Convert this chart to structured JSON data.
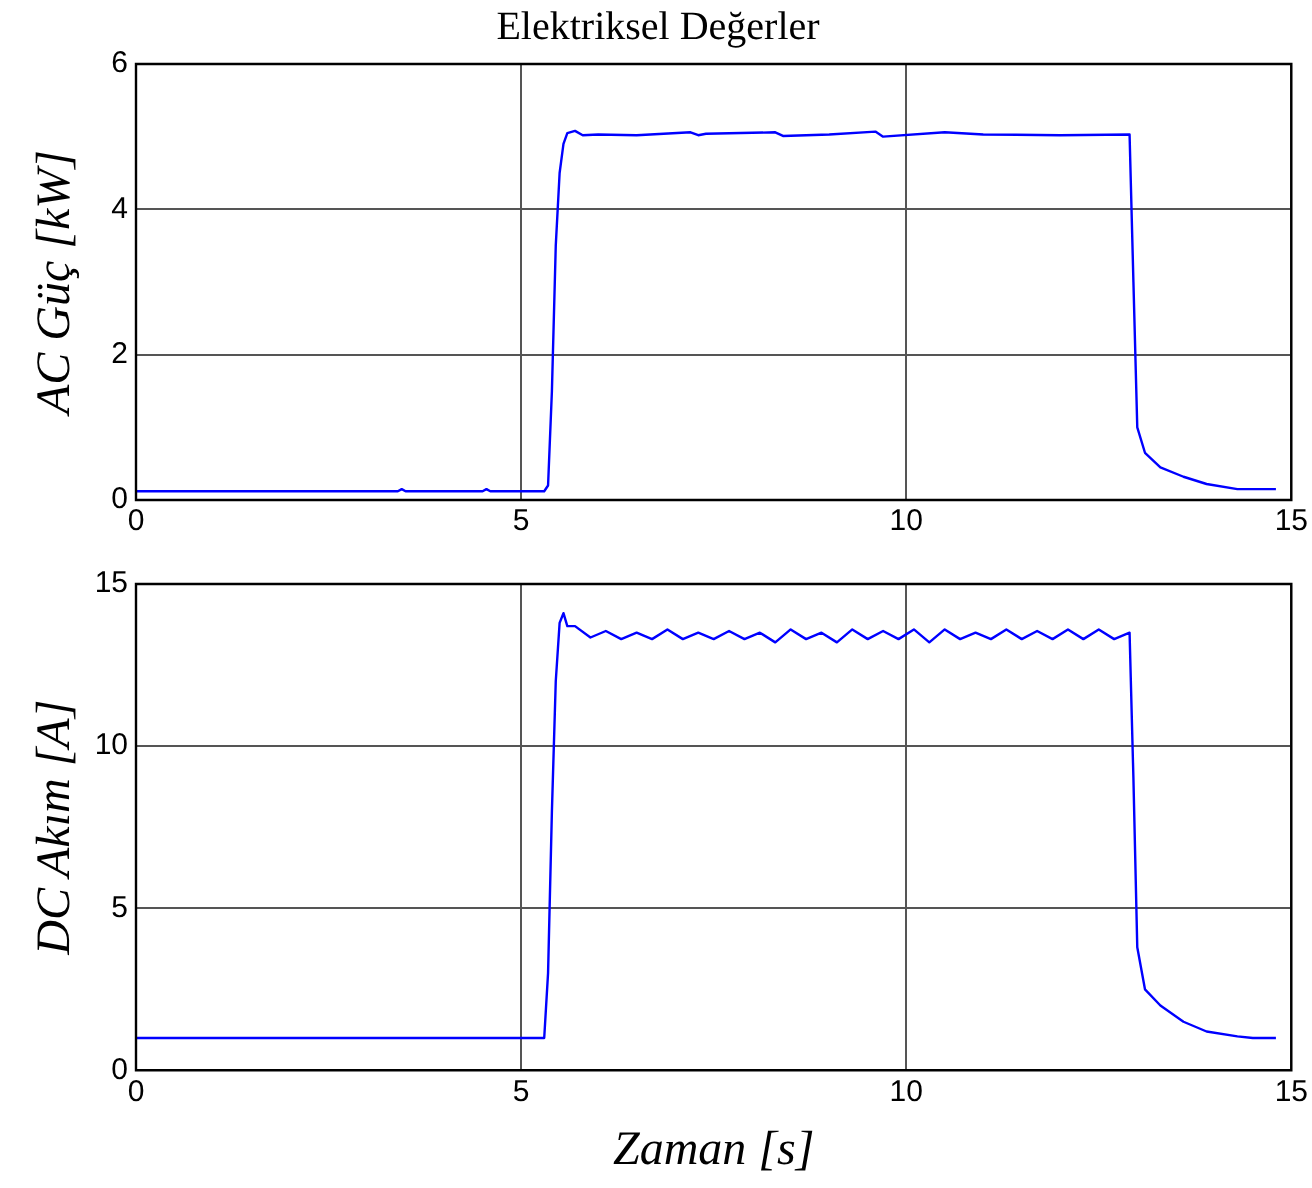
{
  "chart_data": [
    {
      "type": "line",
      "title": "Elektriksel Değerler",
      "ylabel": "AC Güç [kW]",
      "xlim": [
        0,
        15
      ],
      "xticks": [
        0,
        5,
        10,
        15
      ],
      "ylim": [
        0,
        6
      ],
      "yticks": [
        0,
        2,
        4,
        6
      ],
      "grid": true,
      "legend": false,
      "marker": "none",
      "line_style": "solid",
      "series": [
        {
          "color": "#0000ff",
          "x": [
            0,
            3.4,
            3.45,
            3.5,
            4.5,
            4.55,
            4.6,
            5.3,
            5.35,
            5.4,
            5.45,
            5.5,
            5.55,
            5.6,
            5.7,
            5.8,
            6.0,
            6.5,
            7.2,
            7.3,
            7.4,
            8.3,
            8.4,
            9.0,
            9.6,
            9.7,
            10.5,
            11.0,
            12.0,
            12.9,
            12.95,
            13.0,
            13.1,
            13.3,
            13.6,
            13.9,
            14.3,
            14.8
          ],
          "values": [
            0.12,
            0.12,
            0.15,
            0.12,
            0.12,
            0.15,
            0.12,
            0.12,
            0.2,
            1.5,
            3.5,
            4.5,
            4.9,
            5.05,
            5.08,
            5.02,
            5.03,
            5.02,
            5.06,
            5.02,
            5.04,
            5.06,
            5.01,
            5.03,
            5.07,
            5.0,
            5.06,
            5.03,
            5.02,
            5.03,
            3.0,
            1.0,
            0.65,
            0.45,
            0.32,
            0.22,
            0.15,
            0.15
          ]
        }
      ]
    },
    {
      "type": "line",
      "ylabel": "DC Akım [A]",
      "xlabel": "Zaman [s]",
      "xlim": [
        0,
        15
      ],
      "xticks": [
        0,
        5,
        10,
        15
      ],
      "ylim": [
        0,
        15
      ],
      "yticks": [
        0,
        5,
        10,
        15
      ],
      "grid": true,
      "legend": false,
      "marker": "none",
      "line_style": "solid",
      "series": [
        {
          "color": "#0000ff",
          "x": [
            0,
            5.3,
            5.35,
            5.4,
            5.45,
            5.5,
            5.55,
            5.6,
            5.7,
            5.9,
            6.1,
            6.3,
            6.5,
            6.7,
            6.9,
            7.1,
            7.3,
            7.5,
            7.7,
            7.9,
            8.1,
            8.3,
            8.5,
            8.7,
            8.9,
            9.1,
            9.3,
            9.5,
            9.7,
            9.9,
            10.1,
            10.3,
            10.5,
            10.7,
            10.9,
            11.1,
            11.3,
            11.5,
            11.7,
            11.9,
            12.1,
            12.3,
            12.5,
            12.7,
            12.9,
            12.95,
            13.0,
            13.1,
            13.3,
            13.6,
            13.9,
            14.3,
            14.5,
            14.8
          ],
          "values": [
            1.0,
            1.0,
            3.0,
            8.0,
            12.0,
            13.8,
            14.1,
            13.7,
            13.7,
            13.35,
            13.55,
            13.3,
            13.5,
            13.3,
            13.6,
            13.3,
            13.5,
            13.3,
            13.55,
            13.3,
            13.5,
            13.2,
            13.6,
            13.3,
            13.5,
            13.2,
            13.6,
            13.3,
            13.55,
            13.3,
            13.6,
            13.2,
            13.6,
            13.3,
            13.5,
            13.3,
            13.6,
            13.3,
            13.55,
            13.3,
            13.6,
            13.3,
            13.6,
            13.3,
            13.5,
            9.0,
            3.8,
            2.5,
            2.0,
            1.5,
            1.2,
            1.05,
            1.0,
            1.0
          ]
        }
      ]
    }
  ]
}
